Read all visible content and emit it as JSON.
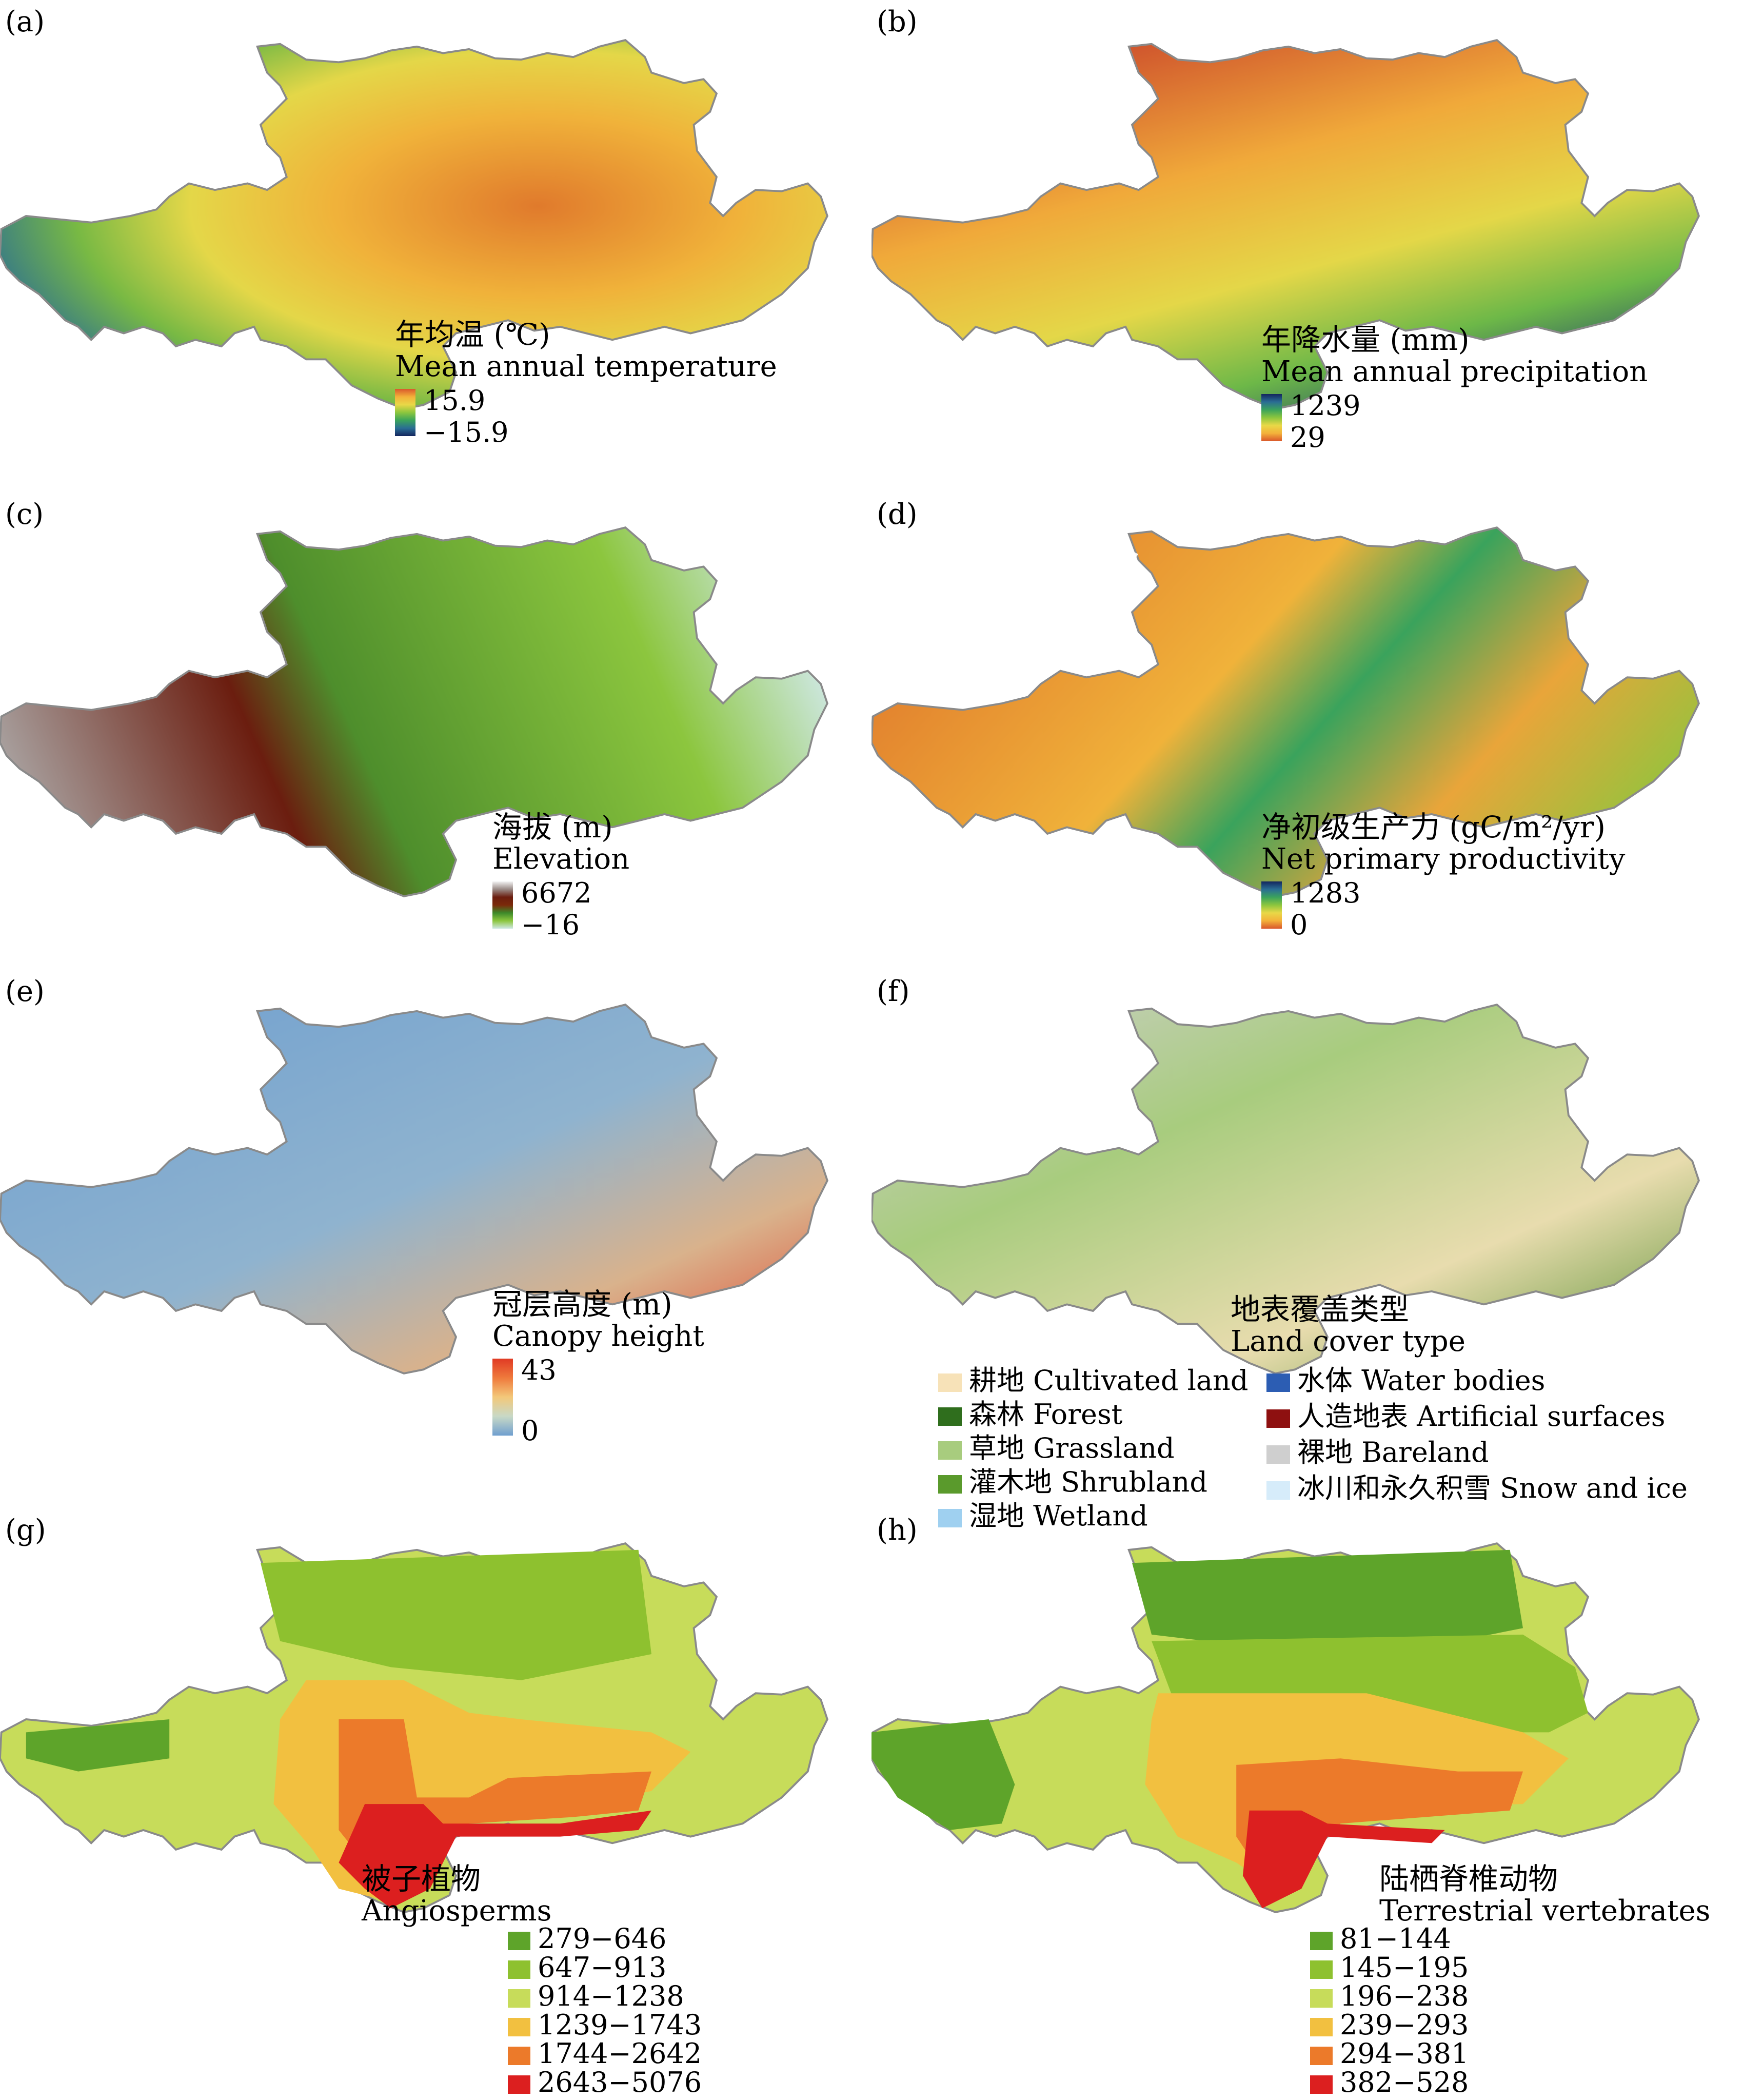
{
  "panels": [
    {
      "id": "a",
      "label": "(a)",
      "title_cn": "年均温 (℃)",
      "title_en": "Mean annual temperature",
      "max": "15.9",
      "min": "−15.9",
      "ramp": [
        "#d9572b",
        "#f3b13a",
        "#e9d847",
        "#8cc63e",
        "#3aa35c",
        "#2a6d94",
        "#13265e"
      ]
    },
    {
      "id": "b",
      "label": "(b)",
      "title_cn": "年降水量 (mm)",
      "title_en": "Mean annual precipitation",
      "max": "1239",
      "min": "29",
      "ramp": [
        "#13265e",
        "#2a6d94",
        "#3aa35c",
        "#8cc63e",
        "#e9d847",
        "#f3b13a",
        "#d9572b"
      ]
    },
    {
      "id": "c",
      "label": "(c)",
      "title_cn": "海拔 (m)",
      "title_en": "Elevation",
      "max": "6672",
      "min": "−16",
      "ramp": [
        "#f2f2f2",
        "#9a8a86",
        "#6b1d0f",
        "#7b2a0a",
        "#3d8a2a",
        "#8cc63e",
        "#cfe8e4"
      ]
    },
    {
      "id": "d",
      "label": "(d)",
      "title_cn": "净初级生产力 (gC/m²/yr)",
      "title_en": "Net primary productivity",
      "max": "1283",
      "min": "0",
      "ramp": [
        "#13265e",
        "#2a6d94",
        "#3aa35c",
        "#8cc63e",
        "#e9d847",
        "#f3b13a",
        "#d9572b"
      ]
    },
    {
      "id": "e",
      "label": "(e)",
      "title_cn": "冠层高度 (m)",
      "title_en": "Canopy height",
      "max": "43",
      "min": "0",
      "ramp": [
        "#e03a24",
        "#ef7a3c",
        "#f3c87a",
        "#c8d9c6",
        "#6f9fcf"
      ]
    },
    {
      "id": "f",
      "label": "(f)",
      "title_cn": "地表覆盖类型",
      "title_en": "Land cover type"
    },
    {
      "id": "g",
      "label": "(g)",
      "title_cn": "被子植物",
      "title_en": "Angiosperms",
      "classes": [
        {
          "range": "279−646",
          "color": "#5ea42a"
        },
        {
          "range": "647−913",
          "color": "#8ec12f"
        },
        {
          "range": "914−1238",
          "color": "#c7dc5a"
        },
        {
          "range": "1239−1743",
          "color": "#f2c040"
        },
        {
          "range": "1744−2642",
          "color": "#ec7a2a"
        },
        {
          "range": "2643−5076",
          "color": "#dc1f1f"
        }
      ]
    },
    {
      "id": "h",
      "label": "(h)",
      "title_cn": "陆栖脊椎动物",
      "title_en": "Terrestrial vertebrates",
      "classes": [
        {
          "range": "81−144",
          "color": "#5ea42a"
        },
        {
          "range": "145−195",
          "color": "#8ec12f"
        },
        {
          "range": "196−238",
          "color": "#c7dc5a"
        },
        {
          "range": "239−293",
          "color": "#f2c040"
        },
        {
          "range": "294−381",
          "color": "#ec7a2a"
        },
        {
          "range": "382−528",
          "color": "#dc1f1f"
        }
      ]
    }
  ],
  "landcover": [
    {
      "label": "耕地 Cultivated land",
      "color": "#f7e2b8"
    },
    {
      "label": "森林 Forest",
      "color": "#2f6e1d"
    },
    {
      "label": "草地 Grassland",
      "color": "#a8cc7e"
    },
    {
      "label": "灌木地 Shrubland",
      "color": "#5a9a2c"
    },
    {
      "label": "湿地 Wetland",
      "color": "#9fd0f0"
    },
    {
      "label": "水体 Water bodies",
      "color": "#2c5db3"
    },
    {
      "label": "人造地表 Artificial surfaces",
      "color": "#8e1010"
    },
    {
      "label": "裸地 Bareland",
      "color": "#cfcfcf"
    },
    {
      "label": "冰川和永久积雪 Snow and ice",
      "color": "#d6ecfa"
    }
  ]
}
